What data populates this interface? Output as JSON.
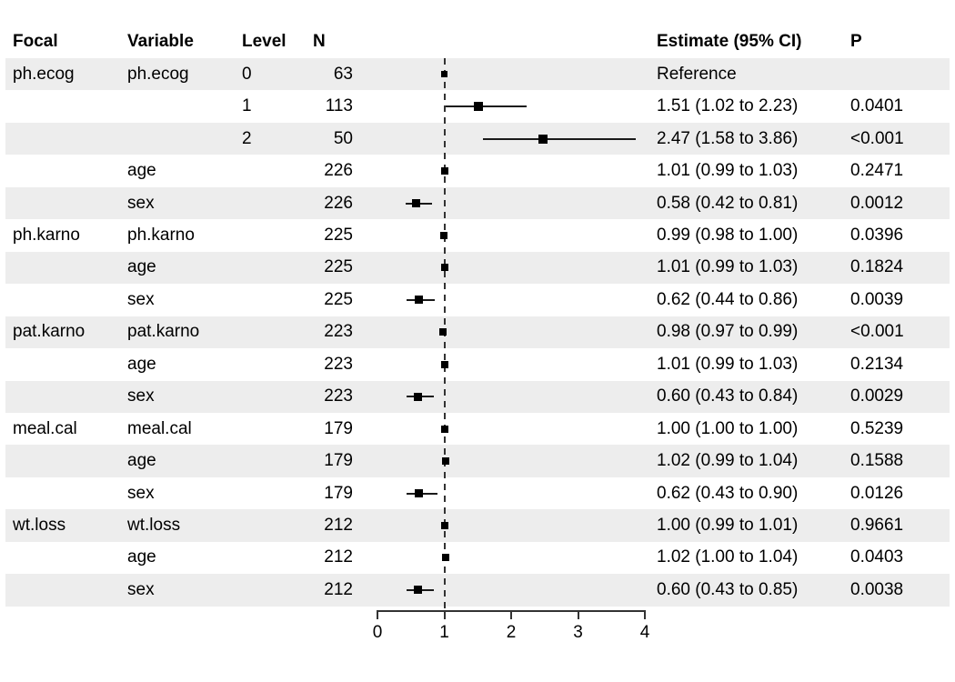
{
  "colors": {
    "band": "#ededed",
    "marker": "#000000",
    "ci_line": "#1a1a1a",
    "axis": "#333333",
    "reference_line": "#333333",
    "text": "#000000",
    "background": "#ffffff"
  },
  "headers": {
    "focal": "Focal",
    "variable": "Variable",
    "level": "Level",
    "n": "N",
    "estimate": "Estimate (95% CI)",
    "p": "P"
  },
  "chart_data": {
    "type": "scatter",
    "subtype": "forest_plot",
    "title": "",
    "xlabel": "",
    "ylabel": "",
    "xlim": [
      0,
      4
    ],
    "x_ticks": [
      "0",
      "1",
      "2",
      "3",
      "4"
    ],
    "x_tick_values": [
      0,
      1,
      2,
      3,
      4
    ],
    "reference_line_x": 1,
    "grid": false,
    "legend": false,
    "rows": [
      {
        "focal": "ph.ecog",
        "variable": "ph.ecog",
        "level": "0",
        "n": "63",
        "estimate_label": "Reference",
        "p": "",
        "est": 1,
        "lo": null,
        "hi": null,
        "box": 7
      },
      {
        "focal": "",
        "variable": "",
        "level": "1",
        "n": "113",
        "estimate_label": "1.51 (1.02 to 2.23)",
        "p": "0.0401",
        "est": 1.51,
        "lo": 1.02,
        "hi": 2.23,
        "box": 10
      },
      {
        "focal": "",
        "variable": "",
        "level": "2",
        "n": "50",
        "estimate_label": "2.47 (1.58 to 3.86)",
        "p": "<0.001",
        "est": 2.47,
        "lo": 1.58,
        "hi": 3.86,
        "box": 10
      },
      {
        "focal": "",
        "variable": "age",
        "level": "",
        "n": "226",
        "estimate_label": "1.01 (0.99 to 1.03)",
        "p": "0.2471",
        "est": 1.01,
        "lo": 0.99,
        "hi": 1.03,
        "box": 8
      },
      {
        "focal": "",
        "variable": "sex",
        "level": "",
        "n": "226",
        "estimate_label": "0.58 (0.42 to 0.81)",
        "p": "0.0012",
        "est": 0.58,
        "lo": 0.42,
        "hi": 0.81,
        "box": 9
      },
      {
        "focal": "ph.karno",
        "variable": "ph.karno",
        "level": "",
        "n": "225",
        "estimate_label": "0.99 (0.98 to 1.00)",
        "p": "0.0396",
        "est": 0.99,
        "lo": 0.98,
        "hi": 1.0,
        "box": 8
      },
      {
        "focal": "",
        "variable": "age",
        "level": "",
        "n": "225",
        "estimate_label": "1.01 (0.99 to 1.03)",
        "p": "0.1824",
        "est": 1.01,
        "lo": 0.99,
        "hi": 1.03,
        "box": 8
      },
      {
        "focal": "",
        "variable": "sex",
        "level": "",
        "n": "225",
        "estimate_label": "0.62 (0.44 to 0.86)",
        "p": "0.0039",
        "est": 0.62,
        "lo": 0.44,
        "hi": 0.86,
        "box": 9
      },
      {
        "focal": "pat.karno",
        "variable": "pat.karno",
        "level": "",
        "n": "223",
        "estimate_label": "0.98 (0.97 to 0.99)",
        "p": "<0.001",
        "est": 0.98,
        "lo": 0.97,
        "hi": 0.99,
        "box": 8
      },
      {
        "focal": "",
        "variable": "age",
        "level": "",
        "n": "223",
        "estimate_label": "1.01 (0.99 to 1.03)",
        "p": "0.2134",
        "est": 1.01,
        "lo": 0.99,
        "hi": 1.03,
        "box": 8
      },
      {
        "focal": "",
        "variable": "sex",
        "level": "",
        "n": "223",
        "estimate_label": "0.60 (0.43 to 0.84)",
        "p": "0.0029",
        "est": 0.6,
        "lo": 0.43,
        "hi": 0.84,
        "box": 9
      },
      {
        "focal": "meal.cal",
        "variable": "meal.cal",
        "level": "",
        "n": "179",
        "estimate_label": "1.00 (1.00 to 1.00)",
        "p": "0.5239",
        "est": 1.0,
        "lo": 1.0,
        "hi": 1.0,
        "box": 8
      },
      {
        "focal": "",
        "variable": "age",
        "level": "",
        "n": "179",
        "estimate_label": "1.02 (0.99 to 1.04)",
        "p": "0.1588",
        "est": 1.02,
        "lo": 0.99,
        "hi": 1.04,
        "box": 8
      },
      {
        "focal": "",
        "variable": "sex",
        "level": "",
        "n": "179",
        "estimate_label": "0.62 (0.43 to 0.90)",
        "p": "0.0126",
        "est": 0.62,
        "lo": 0.43,
        "hi": 0.9,
        "box": 9
      },
      {
        "focal": "wt.loss",
        "variable": "wt.loss",
        "level": "",
        "n": "212",
        "estimate_label": "1.00 (0.99 to 1.01)",
        "p": "0.9661",
        "est": 1.0,
        "lo": 0.99,
        "hi": 1.01,
        "box": 8
      },
      {
        "focal": "",
        "variable": "age",
        "level": "",
        "n": "212",
        "estimate_label": "1.02 (1.00 to 1.04)",
        "p": "0.0403",
        "est": 1.02,
        "lo": 1.0,
        "hi": 1.04,
        "box": 8
      },
      {
        "focal": "",
        "variable": "sex",
        "level": "",
        "n": "212",
        "estimate_label": "0.60 (0.43 to 0.85)",
        "p": "0.0038",
        "est": 0.6,
        "lo": 0.43,
        "hi": 0.85,
        "box": 9
      }
    ]
  }
}
